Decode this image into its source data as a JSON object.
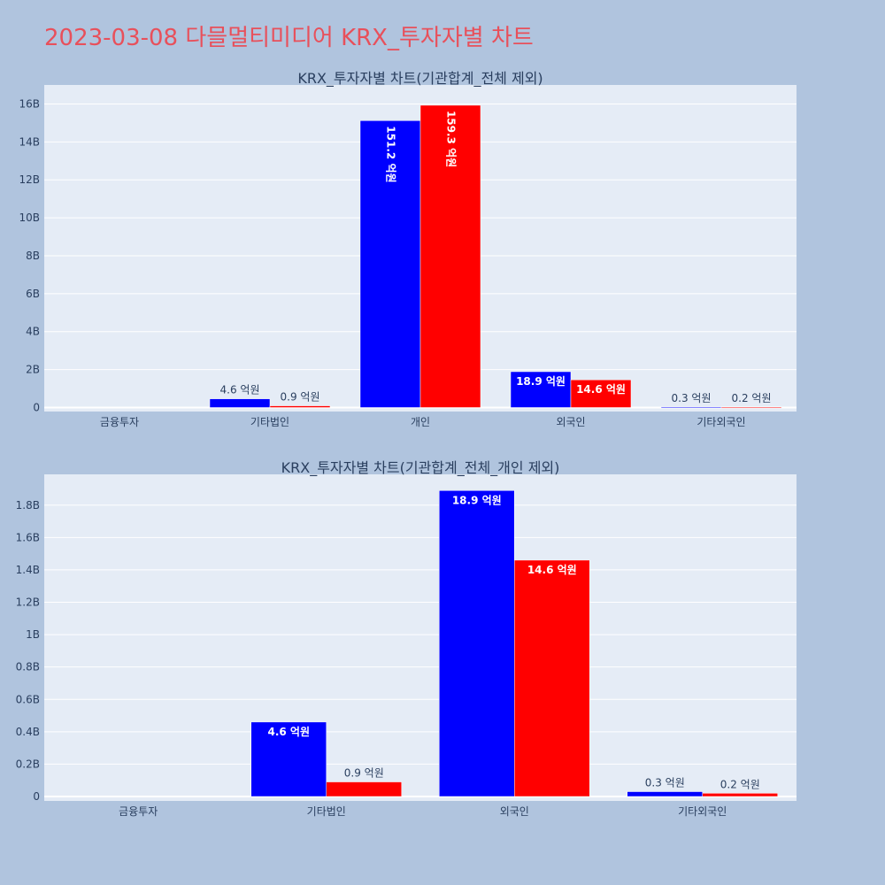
{
  "page": {
    "title": "2023-03-08 다믈멀티미디어 KRX_투자자별 차트"
  },
  "colors": {
    "background": "#b0c4de",
    "plot_bg": "#e5ecf6",
    "grid": "#ffffff",
    "title": "#e8505b",
    "text": "#2a3f5f",
    "series_buy": "#0000ff",
    "series_sell": "#ff0000"
  },
  "chart_data": [
    {
      "type": "bar",
      "title": "KRX_투자자별 차트(기관합계_전체 제외)",
      "categories": [
        "금융투자",
        "기타법인",
        "개인",
        "외국인",
        "기타외국인"
      ],
      "ylim": [
        0,
        17000000000
      ],
      "yticks": [
        0,
        2000000000,
        4000000000,
        6000000000,
        8000000000,
        10000000000,
        12000000000,
        14000000000,
        16000000000
      ],
      "ytick_labels": [
        "0",
        "2B",
        "4B",
        "6B",
        "8B",
        "10B",
        "12B",
        "14B",
        "16B"
      ],
      "grid": true,
      "series": [
        {
          "color": "#0000ff",
          "values": [
            0,
            460000000,
            15120000000,
            1890000000,
            30000000
          ],
          "labels": [
            "",
            "4.6 억원",
            "151.2 억원",
            "18.9 억원",
            "0.3 억원"
          ]
        },
        {
          "color": "#ff0000",
          "values": [
            0,
            90000000,
            15930000000,
            1460000000,
            20000000
          ],
          "labels": [
            "",
            "0.9 억원",
            "159.3 억원",
            "14.6 억원",
            "0.2 억원"
          ]
        }
      ]
    },
    {
      "type": "bar",
      "title": "KRX_투자자별 차트(기관합계_전체_개인 제외)",
      "categories": [
        "금융투자",
        "기타법인",
        "외국인",
        "기타외국인"
      ],
      "ylim": [
        0,
        2000000000
      ],
      "yticks": [
        0,
        200000000,
        400000000,
        600000000,
        800000000,
        1000000000,
        1200000000,
        1400000000,
        1600000000,
        1800000000
      ],
      "ytick_labels": [
        "0",
        "0.2B",
        "0.4B",
        "0.6B",
        "0.8B",
        "1B",
        "1.2B",
        "1.4B",
        "1.6B",
        "1.8B"
      ],
      "grid": true,
      "series": [
        {
          "color": "#0000ff",
          "values": [
            0,
            460000000,
            1890000000,
            30000000
          ],
          "labels": [
            "",
            "4.6 억원",
            "18.9 억원",
            "0.3 억원"
          ]
        },
        {
          "color": "#ff0000",
          "values": [
            0,
            90000000,
            1460000000,
            20000000
          ],
          "labels": [
            "",
            "0.9 억원",
            "14.6 억원",
            "0.2 억원"
          ]
        }
      ]
    }
  ]
}
